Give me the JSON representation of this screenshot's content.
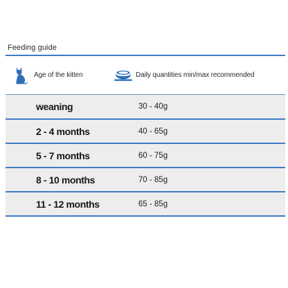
{
  "title": "Feeding guide",
  "header": {
    "age_label": "Age of the kitten",
    "qty_label": "Daily quantities min/max recommended",
    "age_icon": "cat-icon",
    "qty_icon": "food-bowl-icon"
  },
  "rows": [
    {
      "age": "weaning",
      "qty": "30 - 40g"
    },
    {
      "age": "2 - 4 months",
      "qty": "40 - 65g"
    },
    {
      "age": "5 - 7 months",
      "qty": "60 - 75g"
    },
    {
      "age": "8 - 10 months",
      "qty": "70 - 85g"
    },
    {
      "age": "11 - 12 months",
      "qty": "65 - 85g"
    }
  ],
  "colors": {
    "accent": "#3d7cc4",
    "row_background": "#ededed"
  }
}
